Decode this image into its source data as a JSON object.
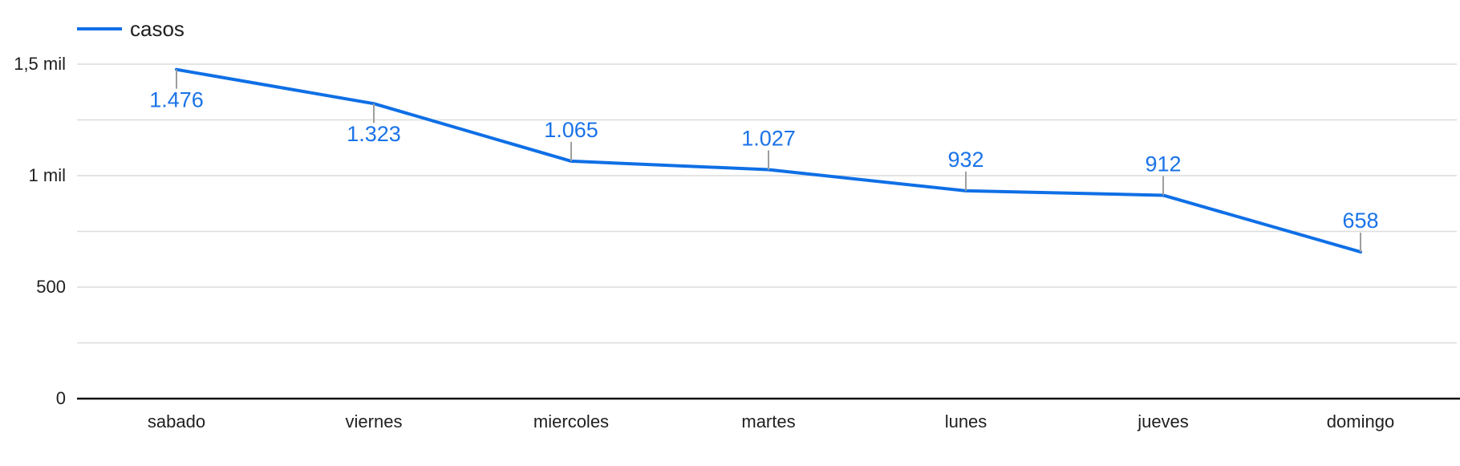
{
  "chart_data": {
    "type": "line",
    "title": "",
    "xlabel": "",
    "ylabel": "",
    "categories": [
      "sabado",
      "viernes",
      "miercoles",
      "martes",
      "lunes",
      "jueves",
      "domingo"
    ],
    "series": [
      {
        "name": "casos",
        "color": "#0F6FE6",
        "values": [
          1476,
          1323,
          1065,
          1027,
          932,
          912,
          658
        ],
        "data_labels": [
          "1.476",
          "1.323",
          "1.065",
          "1.027",
          "932",
          "912",
          "658"
        ],
        "label_positions": [
          "below",
          "below",
          "above",
          "above",
          "above",
          "above",
          "above"
        ]
      }
    ],
    "ylim": [
      0,
      1500
    ],
    "y_ticks": [
      {
        "value": 0,
        "label": "0"
      },
      {
        "value": 500,
        "label": "500"
      },
      {
        "value": 1000,
        "label": "1 mil"
      },
      {
        "value": 1500,
        "label": "1,5 mil"
      }
    ],
    "minor_gridlines": [
      250,
      750,
      1250
    ],
    "grid": true,
    "legend_position": "top-left"
  },
  "legend": {
    "items": [
      {
        "label": "casos",
        "color": "#0F6FE6"
      }
    ]
  },
  "colors": {
    "series": "#0F6FE6",
    "data_label": "#1A73E8",
    "gridline": "#DCDCDC",
    "axis": "#111111",
    "text": "#1F1F1F",
    "label_tick": "#9E9E9E"
  }
}
